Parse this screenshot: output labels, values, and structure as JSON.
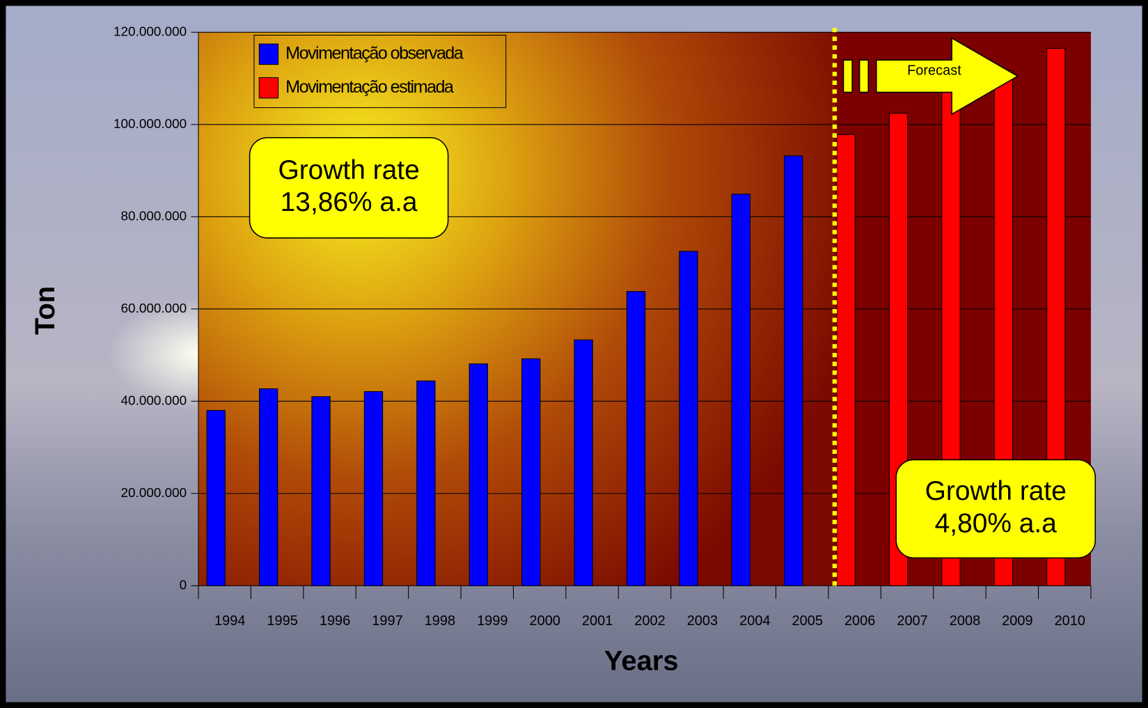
{
  "chart_data": {
    "type": "bar",
    "x_label": "Years",
    "y_label": "Ton",
    "categories": [
      "1994",
      "1995",
      "1996",
      "1997",
      "1998",
      "1999",
      "2000",
      "2001",
      "2002",
      "2003",
      "2004",
      "2005",
      "2006",
      "2007",
      "2008",
      "2009",
      "2010"
    ],
    "series": [
      {
        "name": "Movimentação observada",
        "color": "#0000ff",
        "values": [
          38000000,
          42700000,
          41000000,
          42100000,
          44400000,
          48100000,
          49200000,
          53300000,
          63800000,
          72500000,
          84900000,
          93200000,
          null,
          null,
          null,
          null,
          null
        ]
      },
      {
        "name": "Movimentação estimada",
        "color": "#ff0000",
        "values": [
          null,
          null,
          null,
          null,
          null,
          null,
          null,
          null,
          null,
          null,
          null,
          null,
          97800000,
          102400000,
          107300000,
          111700000,
          116500000
        ]
      }
    ],
    "ylim": [
      0,
      120000000
    ],
    "yticks": [
      0,
      {
        "value": 20000000,
        "label": "20.000.000"
      },
      {
        "value": 40000000,
        "label": "40.000.000"
      },
      {
        "value": 60000000,
        "label": "60.000.000"
      },
      {
        "value": 80000000,
        "label": "80.000.000"
      },
      {
        "value": 100000000,
        "label": "100.000.000"
      },
      {
        "value": 120000000,
        "label": "120.000.000"
      }
    ],
    "grid": true,
    "legend": "upper-left",
    "annotations": [
      {
        "lines": [
          "Growth rate",
          "13,86% a.a"
        ]
      },
      {
        "lines": [
          "Growth rate",
          "4,80% a.a"
        ]
      }
    ],
    "forecast_label": "Forecast"
  }
}
